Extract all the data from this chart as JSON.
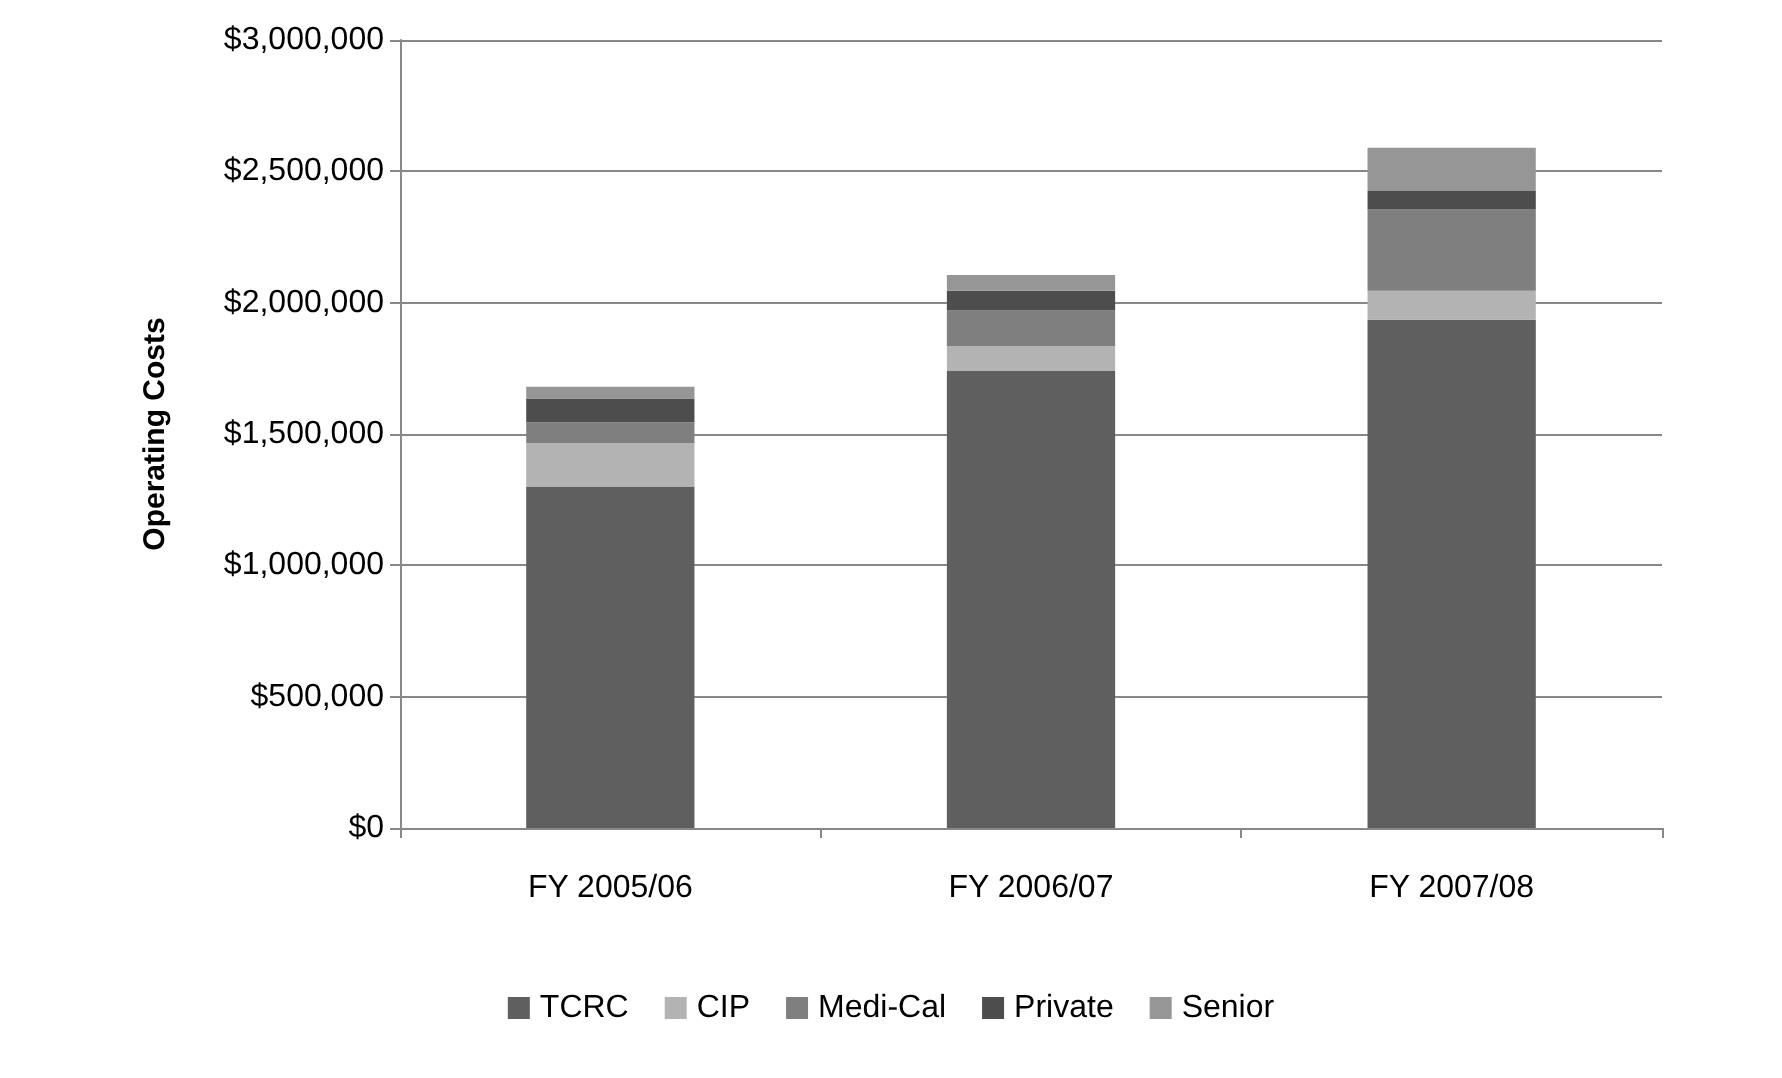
{
  "chart_data": {
    "type": "bar",
    "stacked": true,
    "ylabel": "Operating Costs",
    "categories": [
      "FY 2005/06",
      "FY 2006/07",
      "FY 2007/08"
    ],
    "series": [
      {
        "name": "TCRC",
        "color": "#5f5f5f",
        "values": [
          1300000,
          1740000,
          1935000
        ]
      },
      {
        "name": "CIP",
        "color": "#b3b3b3",
        "values": [
          165000,
          95000,
          110000
        ]
      },
      {
        "name": "Medi-Cal",
        "color": "#7f7f7f",
        "values": [
          80000,
          135000,
          310000
        ]
      },
      {
        "name": "Private",
        "color": "#4d4d4d",
        "values": [
          90000,
          75000,
          70000
        ]
      },
      {
        "name": "Senior",
        "color": "#969696",
        "values": [
          45000,
          60000,
          165000
        ]
      }
    ],
    "ylim": [
      0,
      3000000
    ],
    "yticks": [
      {
        "value": 0,
        "label": "$0"
      },
      {
        "value": 500000,
        "label": "$500,000"
      },
      {
        "value": 1000000,
        "label": "$1,000,000"
      },
      {
        "value": 1500000,
        "label": "$1,500,000"
      },
      {
        "value": 2000000,
        "label": "$2,000,000"
      },
      {
        "value": 2500000,
        "label": "$2,500,000"
      },
      {
        "value": 3000000,
        "label": "$3,000,000"
      }
    ],
    "grid": "y",
    "legend": "bottom"
  }
}
